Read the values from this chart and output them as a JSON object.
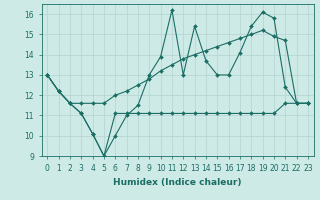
{
  "title": "",
  "xlabel": "Humidex (Indice chaleur)",
  "bg_color": "#ceeae7",
  "grid_color": "#b8d8d5",
  "line_color": "#1a6e64",
  "xlim": [
    -0.5,
    23.5
  ],
  "ylim": [
    9,
    16.5
  ],
  "xticks": [
    0,
    1,
    2,
    3,
    4,
    5,
    6,
    7,
    8,
    9,
    10,
    11,
    12,
    13,
    14,
    15,
    16,
    17,
    18,
    19,
    20,
    21,
    22,
    23
  ],
  "yticks": [
    9,
    10,
    11,
    12,
    13,
    14,
    15,
    16
  ],
  "line1_x": [
    0,
    1,
    2,
    3,
    4,
    5,
    6,
    7,
    8,
    9,
    10,
    11,
    12,
    13,
    14,
    15,
    16,
    17,
    18,
    19,
    20,
    21,
    22,
    23
  ],
  "line1_y": [
    13.0,
    12.2,
    11.6,
    11.1,
    10.1,
    9.0,
    10.0,
    11.0,
    11.5,
    13.0,
    13.9,
    16.2,
    13.0,
    15.4,
    13.7,
    13.0,
    13.0,
    14.1,
    15.4,
    16.1,
    15.8,
    12.4,
    11.6,
    11.6
  ],
  "line2_x": [
    0,
    1,
    2,
    3,
    4,
    5,
    6,
    7,
    8,
    9,
    10,
    11,
    12,
    13,
    14,
    15,
    16,
    17,
    18,
    19,
    20,
    21,
    22,
    23
  ],
  "line2_y": [
    13.0,
    12.2,
    11.6,
    11.1,
    10.1,
    9.0,
    11.1,
    11.1,
    11.1,
    11.1,
    11.1,
    11.1,
    11.1,
    11.1,
    11.1,
    11.1,
    11.1,
    11.1,
    11.1,
    11.1,
    11.1,
    11.6,
    11.6,
    11.6
  ],
  "line3_x": [
    0,
    1,
    2,
    3,
    4,
    5,
    6,
    7,
    8,
    9,
    10,
    11,
    12,
    13,
    14,
    15,
    16,
    17,
    18,
    19,
    20,
    21,
    22,
    23
  ],
  "line3_y": [
    13.0,
    12.2,
    11.6,
    11.6,
    11.6,
    11.6,
    12.0,
    12.2,
    12.5,
    12.8,
    13.2,
    13.5,
    13.8,
    14.0,
    14.2,
    14.4,
    14.6,
    14.8,
    15.0,
    15.2,
    14.9,
    14.7,
    11.6,
    11.6
  ],
  "tick_fontsize": 5.5,
  "xlabel_fontsize": 6.5
}
